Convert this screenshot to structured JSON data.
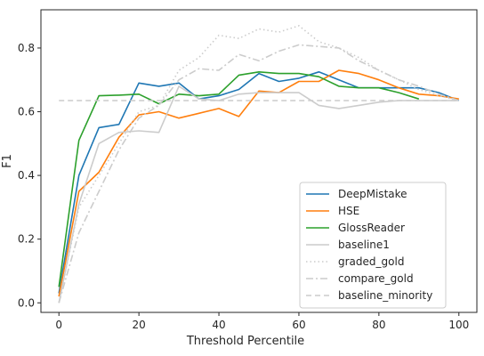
{
  "chart_data": {
    "type": "line",
    "title": "",
    "xlabel": "Threshold Percentile",
    "ylabel": "F1",
    "xlim": [
      -4.5,
      104.5
    ],
    "ylim": [
      -0.03,
      0.92
    ],
    "xticks": [
      0,
      20,
      40,
      60,
      80,
      100
    ],
    "xtick_labels": [
      "0",
      "20",
      "40",
      "60",
      "80",
      "100"
    ],
    "yticks": [
      0.0,
      0.2,
      0.4,
      0.6,
      0.8
    ],
    "ytick_labels": [
      "0.0",
      "0.2",
      "0.4",
      "0.6",
      "0.8"
    ],
    "grid": false,
    "legend_position": "lower-right",
    "series": [
      {
        "name": "DeepMistake",
        "color": "#1f77b4",
        "dash": "solid",
        "x": [
          0,
          5,
          10,
          15,
          20,
          25,
          30,
          35,
          40,
          45,
          50,
          55,
          60,
          65,
          70,
          75,
          80,
          85,
          90,
          95,
          100
        ],
        "y": [
          0.03,
          0.4,
          0.55,
          0.56,
          0.69,
          0.68,
          0.69,
          0.64,
          0.65,
          0.67,
          0.72,
          0.695,
          0.705,
          0.725,
          0.7,
          0.675,
          0.675,
          0.675,
          0.675,
          0.66,
          0.635
        ]
      },
      {
        "name": "HSE",
        "color": "#ff7f0e",
        "dash": "solid",
        "x": [
          0,
          5,
          10,
          15,
          20,
          25,
          30,
          35,
          40,
          45,
          50,
          55,
          60,
          65,
          70,
          75,
          80,
          85,
          90,
          95,
          100
        ],
        "y": [
          0.02,
          0.35,
          0.41,
          0.52,
          0.59,
          0.6,
          0.58,
          0.595,
          0.61,
          0.585,
          0.665,
          0.66,
          0.695,
          0.695,
          0.73,
          0.72,
          0.7,
          0.675,
          0.655,
          0.65,
          0.64
        ]
      },
      {
        "name": "GlossReader",
        "color": "#2ca02c",
        "dash": "solid",
        "x": [
          0,
          5,
          10,
          15,
          20,
          25,
          30,
          35,
          40,
          45,
          50,
          55,
          60,
          65,
          70,
          75,
          80,
          85,
          90
        ],
        "y": [
          0.05,
          0.51,
          0.65,
          0.652,
          0.655,
          0.625,
          0.655,
          0.65,
          0.655,
          0.715,
          0.725,
          0.72,
          0.72,
          0.71,
          0.68,
          0.675,
          0.675,
          0.66,
          0.64
        ]
      },
      {
        "name": "baseline1",
        "color": "#cccccc",
        "dash": "solid",
        "x": [
          0,
          5,
          10,
          15,
          20,
          25,
          30,
          35,
          40,
          45,
          50,
          55,
          60,
          65,
          70,
          75,
          80,
          85,
          90,
          95,
          100
        ],
        "y": [
          0.0,
          0.31,
          0.5,
          0.535,
          0.54,
          0.535,
          0.68,
          0.64,
          0.635,
          0.655,
          0.66,
          0.66,
          0.66,
          0.62,
          0.61,
          0.62,
          0.63,
          0.635,
          0.635,
          0.635,
          0.635
        ]
      },
      {
        "name": "graded_gold",
        "color": "#cccccc",
        "dash": "dotted",
        "x": [
          0,
          5,
          10,
          15,
          20,
          25,
          30,
          35,
          40,
          45,
          50,
          55,
          60,
          65,
          70,
          75,
          80,
          85,
          90,
          95,
          100
        ],
        "y": [
          0.0,
          0.3,
          0.4,
          0.5,
          0.6,
          0.62,
          0.73,
          0.77,
          0.84,
          0.83,
          0.86,
          0.85,
          0.87,
          0.82,
          0.8,
          0.77,
          0.73,
          0.7,
          0.67,
          0.65,
          0.635
        ]
      },
      {
        "name": "compare_gold",
        "color": "#cccccc",
        "dash": "dashdot",
        "x": [
          0,
          5,
          10,
          15,
          20,
          25,
          30,
          35,
          40,
          45,
          50,
          55,
          60,
          65,
          70,
          75,
          80,
          85,
          90,
          95,
          100
        ],
        "y": [
          0.0,
          0.22,
          0.35,
          0.48,
          0.58,
          0.62,
          0.7,
          0.735,
          0.73,
          0.78,
          0.76,
          0.79,
          0.81,
          0.805,
          0.8,
          0.76,
          0.73,
          0.7,
          0.68,
          0.655,
          0.635
        ]
      },
      {
        "name": "baseline_minority",
        "color": "#cccccc",
        "dash": "dashed",
        "x": [
          0,
          100
        ],
        "y": [
          0.635,
          0.635
        ]
      }
    ]
  }
}
